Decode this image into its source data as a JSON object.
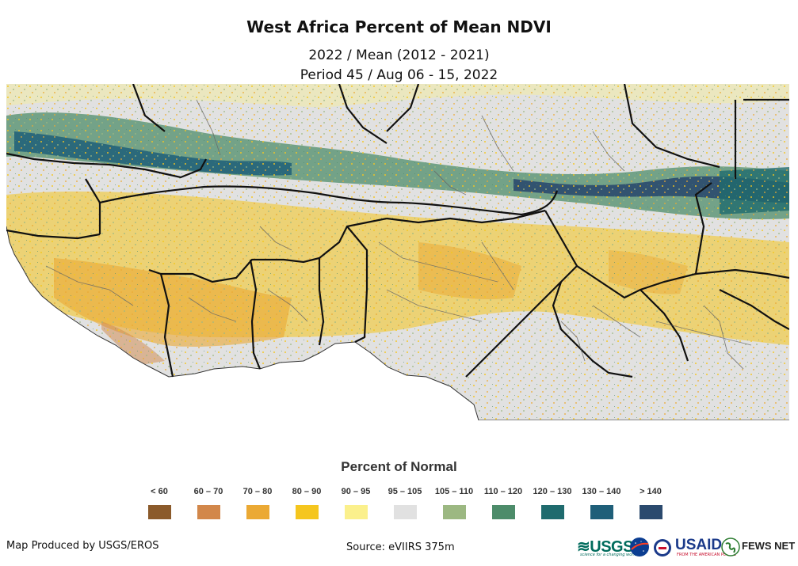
{
  "title": "West Africa Percent of Mean NDVI",
  "subtitle_line1": "2022 / Mean (2012 - 2021)",
  "subtitle_line2": "Period 45 / Aug 06 - 15, 2022",
  "legend": {
    "title": "Percent of Normal",
    "items": [
      {
        "label": "< 60",
        "color": "#8b5a2b"
      },
      {
        "label": "60 – 70",
        "color": "#d2874a"
      },
      {
        "label": "70 – 80",
        "color": "#eba934"
      },
      {
        "label": "80 – 90",
        "color": "#f5c61e"
      },
      {
        "label": "90 – 95",
        "color": "#fbf08c"
      },
      {
        "label": "95 – 105",
        "color": "#e1e1e1"
      },
      {
        "label": "105 – 110",
        "color": "#9cb882"
      },
      {
        "label": "110 – 120",
        "color": "#4d8c6a"
      },
      {
        "label": "120 – 130",
        "color": "#1f6b6e"
      },
      {
        "label": "130 – 140",
        "color": "#1f5f79"
      },
      {
        "label": ">  140",
        "color": "#2b4a6e"
      }
    ]
  },
  "footer": {
    "producer": "Map Produced by USGS/EROS",
    "source": "Source: eVIIRS 375m"
  },
  "logos": {
    "usgs": "≋USGS",
    "usgs_tagline": "science for a changing world",
    "usaid": "USAID",
    "usaid_tagline": "FROM THE AMERICAN PEOPLE",
    "fews": "FEWS NET"
  }
}
